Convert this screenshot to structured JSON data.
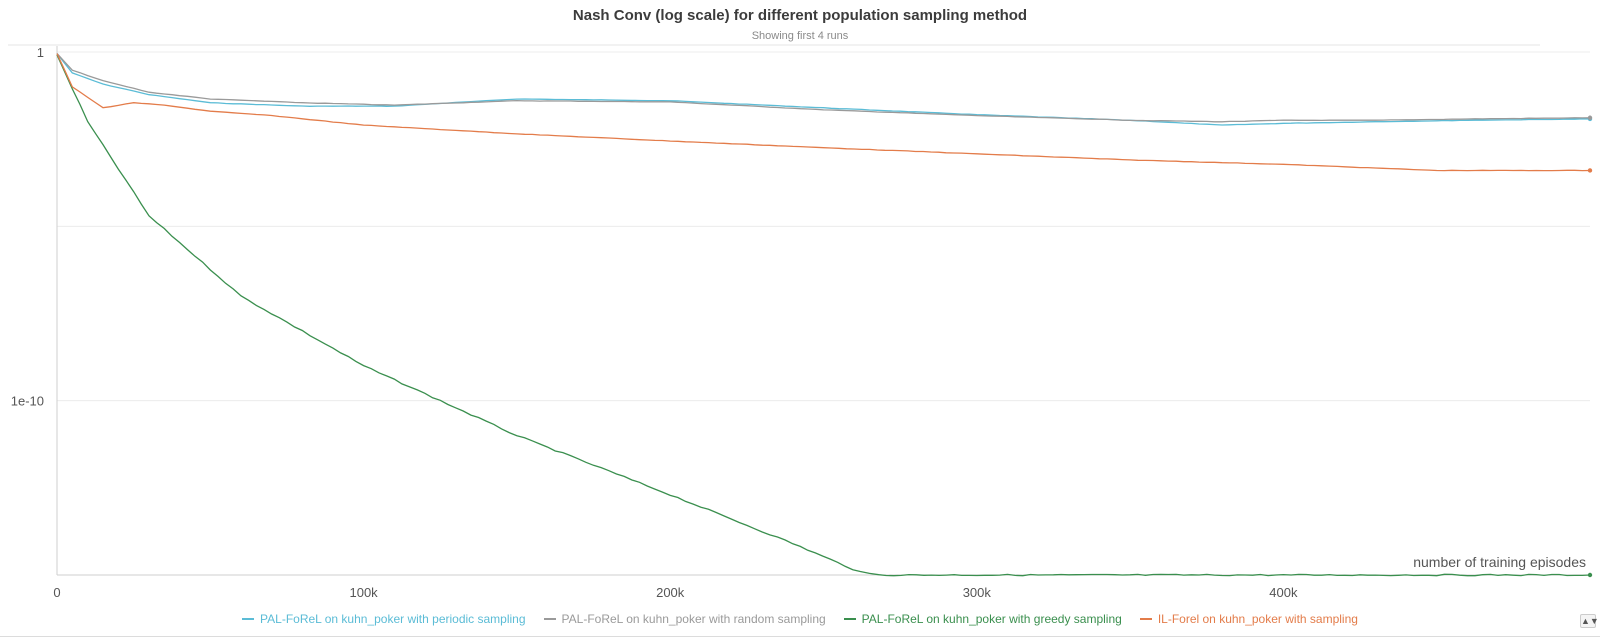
{
  "chart_data": {
    "type": "line",
    "title": "Nash Conv (log scale) for different population sampling method",
    "subtitle": "Showing first 4 runs",
    "xlabel": "number of training episodes",
    "ylabel": "",
    "y_scale": "log",
    "xlim": [
      0,
      500000
    ],
    "ylim": [
      1e-15,
      1
    ],
    "x_ticks": [
      0,
      100000,
      200000,
      300000,
      400000
    ],
    "x_tick_labels": [
      "0",
      "100k",
      "200k",
      "300k",
      "400k"
    ],
    "y_ticks": [
      1,
      1e-10
    ],
    "y_tick_labels": [
      "1",
      "1e-10"
    ],
    "grid": true,
    "legend_position": "bottom",
    "series": [
      {
        "name": "PAL-FoReL on kuhn_poker with periodic sampling",
        "color": "#5bbcd6",
        "x": [
          0,
          5000,
          15000,
          30000,
          50000,
          80000,
          110000,
          150000,
          200000,
          250000,
          300000,
          350000,
          380000,
          400000,
          430000,
          460000,
          500000
        ],
        "y": [
          0.9,
          0.25,
          0.12,
          0.06,
          0.035,
          0.028,
          0.028,
          0.045,
          0.04,
          0.025,
          0.016,
          0.011,
          0.008,
          0.009,
          0.01,
          0.011,
          0.012
        ]
      },
      {
        "name": "PAL-FoReL on kuhn_poker with random sampling",
        "color": "#9a9a9a",
        "x": [
          0,
          5000,
          15000,
          30000,
          50000,
          80000,
          110000,
          150000,
          200000,
          250000,
          300000,
          350000,
          380000,
          400000,
          430000,
          460000,
          500000
        ],
        "y": [
          0.9,
          0.3,
          0.15,
          0.07,
          0.045,
          0.035,
          0.03,
          0.04,
          0.037,
          0.022,
          0.015,
          0.011,
          0.01,
          0.011,
          0.011,
          0.012,
          0.013
        ]
      },
      {
        "name": "PAL-FoReL on kuhn_poker with greedy sampling",
        "color": "#3a8f4e",
        "x": [
          0,
          10000,
          30000,
          60000,
          100000,
          150000,
          200000,
          240000,
          262000,
          268000,
          300000,
          400000,
          500000
        ],
        "y": [
          0.8,
          0.01,
          2e-05,
          1e-07,
          1e-09,
          1e-11,
          2e-13,
          8e-15,
          1.2e-15,
          1e-15,
          1e-15,
          1e-15,
          1e-15
        ]
      },
      {
        "name": "IL-Forel on kuhn_poker with sampling",
        "color": "#e37c4a",
        "x": [
          0,
          5000,
          15000,
          25000,
          35000,
          50000,
          70000,
          100000,
          150000,
          200000,
          250000,
          300000,
          350000,
          400000,
          450000,
          500000
        ],
        "y": [
          0.9,
          0.1,
          0.025,
          0.035,
          0.03,
          0.02,
          0.015,
          0.008,
          0.0045,
          0.0028,
          0.0018,
          0.0012,
          0.0008,
          0.0006,
          0.0004,
          0.0004
        ]
      }
    ]
  }
}
